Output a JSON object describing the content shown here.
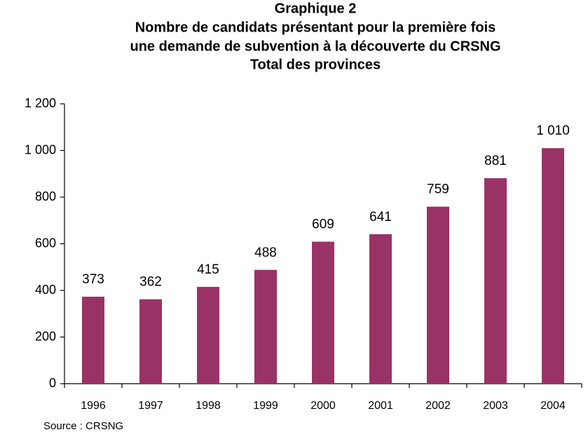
{
  "chart_data": {
    "type": "bar",
    "title": [
      "Graphique 2",
      "Nombre de candidats présentant pour la première fois",
      "une demande de subvention à la découverte du CRSNG",
      "Total des provinces"
    ],
    "categories": [
      "1996",
      "1997",
      "1998",
      "1999",
      "2000",
      "2001",
      "2002",
      "2003",
      "2004"
    ],
    "values": [
      373,
      362,
      415,
      488,
      609,
      641,
      759,
      881,
      1010
    ],
    "value_labels": [
      "373",
      "362",
      "415",
      "488",
      "609",
      "641",
      "759",
      "881",
      "1 010"
    ],
    "color": "#993366",
    "ylim": [
      0,
      1200
    ],
    "yticks": [
      0,
      200,
      400,
      600,
      800,
      {
        "value": 1000,
        "label": "1 000"
      },
      {
        "value": 1200,
        "label": "1 200"
      }
    ],
    "grid": false,
    "source": "Source : CRSNG"
  }
}
